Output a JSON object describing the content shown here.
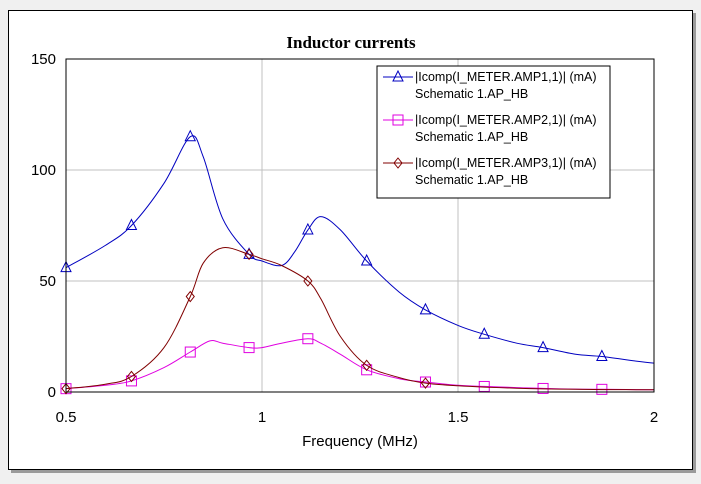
{
  "chart_data": {
    "type": "line",
    "title": "Inductor currents",
    "xlabel": "Frequency (MHz)",
    "ylabel": "",
    "xlim": [
      0.5,
      2
    ],
    "ylim": [
      0,
      150
    ],
    "xticks": [
      "0.5",
      "1",
      "1.5",
      "2"
    ],
    "yticks": [
      "0",
      "50",
      "100",
      "150"
    ],
    "grid": true,
    "legend_position": "top-right",
    "series": [
      {
        "name": "|Icomp(I_METER.AMP1,1)| (mA)",
        "subname": "Schematic 1.AP_HB",
        "color": "#0000c0",
        "marker": "triangle",
        "x": [
          0.5,
          0.6,
          0.667,
          0.75,
          0.817,
          0.85,
          0.9,
          0.967,
          1.0,
          1.05,
          1.083,
          1.117,
          1.15,
          1.2,
          1.267,
          1.35,
          1.417,
          1.5,
          1.567,
          1.65,
          1.717,
          1.8,
          1.867,
          1.95,
          2.0
        ],
        "y": [
          56,
          66,
          75,
          94,
          115,
          106,
          78,
          62,
          59,
          57,
          63,
          73,
          79,
          73,
          59,
          45,
          37,
          30,
          26,
          22,
          20,
          17,
          16,
          14,
          13
        ],
        "marker_x": [
          0.5,
          0.667,
          0.817,
          0.967,
          1.117,
          1.267,
          1.417,
          1.567,
          1.717,
          1.867
        ],
        "marker_y": [
          56,
          75,
          115,
          62,
          73,
          59,
          37,
          26,
          20,
          16
        ]
      },
      {
        "name": "|Icomp(I_METER.AMP2,1)| (mA)",
        "subname": "Schematic 1.AP_HB",
        "color": "#e000e0",
        "marker": "square",
        "x": [
          0.5,
          0.6,
          0.667,
          0.75,
          0.817,
          0.867,
          0.9,
          0.967,
          1.0,
          1.05,
          1.117,
          1.15,
          1.2,
          1.267,
          1.35,
          1.417,
          1.5,
          1.567,
          1.65,
          1.717,
          1.8,
          1.867,
          2.0
        ],
        "y": [
          1.5,
          3,
          5,
          11,
          18,
          23,
          22,
          20,
          20,
          22,
          24,
          22,
          17,
          10,
          6,
          4.5,
          3,
          2.5,
          2,
          1.6,
          1.3,
          1.2,
          1
        ],
        "marker_x": [
          0.5,
          0.667,
          0.817,
          0.967,
          1.117,
          1.267,
          1.417,
          1.567,
          1.717,
          1.867
        ],
        "marker_y": [
          1.5,
          5,
          18,
          20,
          24,
          10,
          4.5,
          2.5,
          1.6,
          1.2
        ]
      },
      {
        "name": "|Icomp(I_METER.AMP3,1)| (mA)",
        "subname": "Schematic 1.AP_HB",
        "color": "#800000",
        "marker": "diamond",
        "x": [
          0.5,
          0.6,
          0.667,
          0.75,
          0.817,
          0.85,
          0.9,
          0.967,
          1.0,
          1.05,
          1.117,
          1.15,
          1.2,
          1.267,
          1.35,
          1.417,
          1.5,
          1.567,
          1.65,
          1.717,
          1.8,
          1.867,
          2.0
        ],
        "y": [
          1.5,
          3.5,
          7,
          20,
          43,
          58,
          65,
          62,
          60,
          57,
          50,
          42,
          25,
          12,
          6.5,
          4,
          2.8,
          2.2,
          1.7,
          1.4,
          1.2,
          1.1,
          1
        ],
        "marker_x": [
          0.5,
          0.667,
          0.817,
          0.967,
          1.117,
          1.267,
          1.417
        ],
        "marker_y": [
          1.5,
          7,
          43,
          62,
          50,
          12,
          4
        ]
      }
    ]
  },
  "colors": {
    "frame_bg": "#f0f0f0",
    "plot_bg": "#ffffff",
    "grid": "#c0c0c0"
  }
}
